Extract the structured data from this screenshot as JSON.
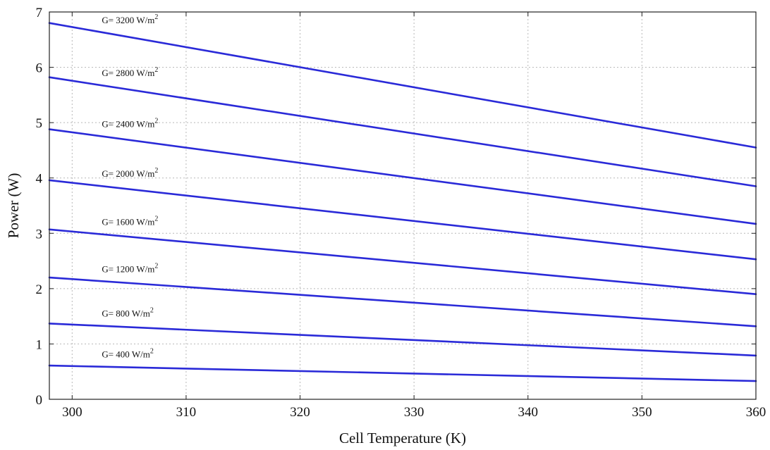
{
  "chart_data": {
    "type": "line",
    "xlabel": "Cell Temperature (K)",
    "ylabel": "Power (W)",
    "xlim": [
      298,
      360
    ],
    "ylim": [
      0,
      7
    ],
    "xticks": [
      300,
      310,
      320,
      330,
      340,
      350,
      360
    ],
    "yticks": [
      0,
      1,
      2,
      3,
      4,
      5,
      6,
      7
    ],
    "grid": true,
    "line_color": "#2a2ad8",
    "series": [
      {
        "label_prefix": "G= 3200 W/m",
        "label_sup": "2",
        "x": [
          298,
          360
        ],
        "y": [
          6.8,
          4.55
        ]
      },
      {
        "label_prefix": "G= 2800 W/m",
        "label_sup": "2",
        "x": [
          298,
          360
        ],
        "y": [
          5.82,
          3.85
        ]
      },
      {
        "label_prefix": "G= 2400 W/m",
        "label_sup": "2",
        "x": [
          298,
          360
        ],
        "y": [
          4.88,
          3.17
        ]
      },
      {
        "label_prefix": "G= 2000 W/m",
        "label_sup": "2",
        "x": [
          298,
          360
        ],
        "y": [
          3.96,
          2.53
        ]
      },
      {
        "label_prefix": "G= 1600 W/m",
        "label_sup": "2",
        "x": [
          298,
          360
        ],
        "y": [
          3.07,
          1.9
        ]
      },
      {
        "label_prefix": "G= 1200 W/m",
        "label_sup": "2",
        "x": [
          298,
          360
        ],
        "y": [
          2.2,
          1.32
        ]
      },
      {
        "label_prefix": "G= 800 W/m",
        "label_sup": "2",
        "x": [
          298,
          360
        ],
        "y": [
          1.37,
          0.79
        ]
      },
      {
        "label_prefix": "G= 400 W/m",
        "label_sup": "2",
        "x": [
          298,
          360
        ],
        "y": [
          0.61,
          0.33
        ]
      }
    ]
  }
}
